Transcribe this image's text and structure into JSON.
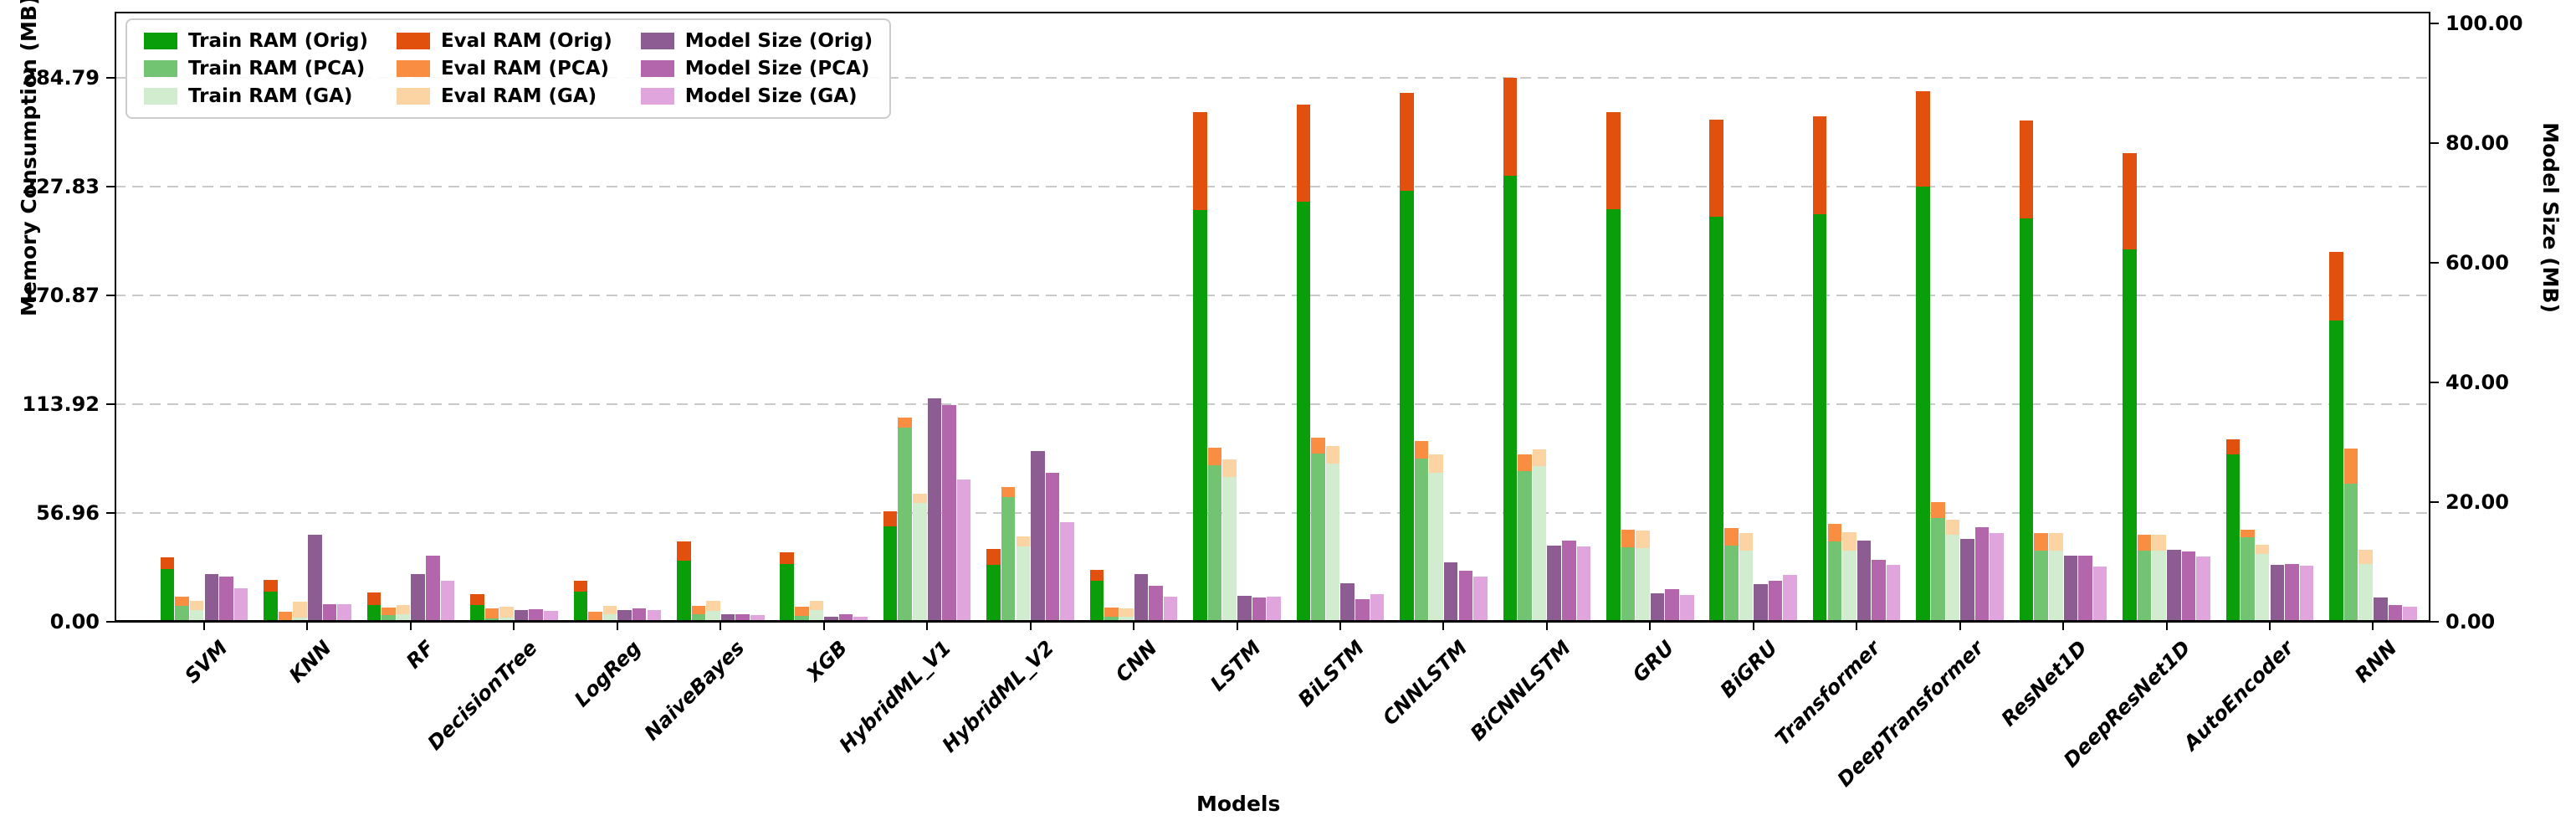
{
  "chart_data": {
    "type": "bar",
    "title": "",
    "xlabel": "Models",
    "ylabel_left": "Memory Consumption (MB)",
    "ylabel_right": "Model Size (MB)",
    "grid": "horizontal-dashed",
    "legend_position": "upper-left",
    "left_axis": {
      "max": 319.5,
      "ticks": [
        {
          "v": 0,
          "label": "0.00"
        },
        {
          "v": 56.96,
          "label": "56.96"
        },
        {
          "v": 113.92,
          "label": "113.92"
        },
        {
          "v": 170.87,
          "label": "170.87"
        },
        {
          "v": 227.83,
          "label": "227.83"
        },
        {
          "v": 284.79,
          "label": "284.79"
        }
      ]
    },
    "right_axis": {
      "max": 102,
      "ticks": [
        {
          "v": 0,
          "label": "0.00"
        },
        {
          "v": 20,
          "label": "20.00"
        },
        {
          "v": 40,
          "label": "40.00"
        },
        {
          "v": 60,
          "label": "60.00"
        },
        {
          "v": 80,
          "label": "80.00"
        },
        {
          "v": 100,
          "label": "100.00"
        }
      ]
    },
    "colors": {
      "train": {
        "orig": "#0a9f0a",
        "pca": "#72c472",
        "ga": "#d2ecd0"
      },
      "eval": {
        "orig": "#e2500d",
        "pca": "#f98e42",
        "ga": "#fcd4a4"
      },
      "size": {
        "orig": "#8c5c93",
        "pca": "#b366ab",
        "ga": "#e0a5dd"
      }
    },
    "legend": [
      {
        "label": "Train RAM (Orig)",
        "color": "#0a9f0a"
      },
      {
        "label": "Train RAM (PCA)",
        "color": "#72c472"
      },
      {
        "label": "Train RAM (GA)",
        "color": "#d2ecd0"
      },
      {
        "label": "Eval RAM (Orig)",
        "color": "#e2500d"
      },
      {
        "label": "Eval RAM (PCA)",
        "color": "#f98e42"
      },
      {
        "label": "Eval RAM (GA)",
        "color": "#fcd4a4"
      },
      {
        "label": "Model Size (Orig)",
        "color": "#8c5c93"
      },
      {
        "label": "Model Size (PCA)",
        "color": "#b366ab"
      },
      {
        "label": "Model Size (GA)",
        "color": "#e0a5dd"
      }
    ],
    "models": [
      {
        "name": "SVM",
        "train": {
          "orig": 27.8,
          "pca": 8.5,
          "ga": 6.3
        },
        "eval": {
          "orig": 5.8,
          "pca": 4.8,
          "ga": 4.5
        },
        "size": {
          "orig": 8.0,
          "pca": 7.5,
          "ga": 5.6
        }
      },
      {
        "name": "KNN",
        "train": {
          "orig": 15.7,
          "pca": 1.0,
          "ga": 2.2
        },
        "eval": {
          "orig": 6.3,
          "pca": 4.2,
          "ga": 8.5
        },
        "size": {
          "orig": 14.5,
          "pca": 3.0,
          "ga": 3.0
        }
      },
      {
        "name": "RF",
        "train": {
          "orig": 8.7,
          "pca": 3.4,
          "ga": 4.1
        },
        "eval": {
          "orig": 6.6,
          "pca": 3.9,
          "ga": 4.6
        },
        "size": {
          "orig": 8.0,
          "pca": 11.0,
          "ga": 6.8
        }
      },
      {
        "name": "DecisionTree",
        "train": {
          "orig": 8.7,
          "pca": 1.9,
          "ga": 2.0
        },
        "eval": {
          "orig": 5.6,
          "pca": 5.1,
          "ga": 5.7
        },
        "size": {
          "orig": 2.0,
          "pca": 2.1,
          "ga": 1.8
        }
      },
      {
        "name": "LogReg",
        "train": {
          "orig": 15.6,
          "pca": 0.5,
          "ga": 3.8
        },
        "eval": {
          "orig": 5.7,
          "pca": 4.7,
          "ga": 4.7
        },
        "size": {
          "orig": 2.0,
          "pca": 2.2,
          "ga": 2.0
        }
      },
      {
        "name": "NaiveBayes",
        "train": {
          "orig": 31.8,
          "pca": 4.1,
          "ga": 5.9
        },
        "eval": {
          "orig": 10.5,
          "pca": 4.1,
          "ga": 5.2
        },
        "size": {
          "orig": 1.2,
          "pca": 1.2,
          "ga": 1.1
        }
      },
      {
        "name": "XGB",
        "train": {
          "orig": 30.3,
          "pca": 2.9,
          "ga": 6.0
        },
        "eval": {
          "orig": 6.0,
          "pca": 4.8,
          "ga": 5.0
        },
        "size": {
          "orig": 0.9,
          "pca": 1.2,
          "ga": 0.9
        }
      },
      {
        "name": "HybridML_V1",
        "train": {
          "orig": 50.0,
          "pca": 101.6,
          "ga": 62.3
        },
        "eval": {
          "orig": 8.0,
          "pca": 5.2,
          "ga": 4.7
        },
        "size": {
          "orig": 37.4,
          "pca": 36.2,
          "ga": 23.8
        }
      },
      {
        "name": "HybridML_V2",
        "train": {
          "orig": 29.9,
          "pca": 65.3,
          "ga": 39.3
        },
        "eval": {
          "orig": 8.1,
          "pca": 5.1,
          "ga": 5.2
        },
        "size": {
          "orig": 28.6,
          "pca": 24.9,
          "ga": 16.7
        }
      },
      {
        "name": "CNN",
        "train": {
          "orig": 21.6,
          "pca": 2.6,
          "ga": 2.6
        },
        "eval": {
          "orig": 5.8,
          "pca": 4.7,
          "ga": 4.4
        },
        "size": {
          "orig": 8.0,
          "pca": 6.0,
          "ga": 4.2
        }
      },
      {
        "name": "LSTM",
        "train": {
          "orig": 215.6,
          "pca": 81.9,
          "ga": 75.8
        },
        "eval": {
          "orig": 51.3,
          "pca": 9.2,
          "ga": 9.2
        },
        "size": {
          "orig": 4.4,
          "pca": 4.1,
          "ga": 4.2
        }
      },
      {
        "name": "BiLSTM",
        "train": {
          "orig": 220.0,
          "pca": 88.2,
          "ga": 82.8
        },
        "eval": {
          "orig": 50.8,
          "pca": 8.3,
          "ga": 9.1
        },
        "size": {
          "orig": 6.5,
          "pca": 3.8,
          "ga": 4.6
        }
      },
      {
        "name": "CNNLSTM",
        "train": {
          "orig": 225.5,
          "pca": 85.3,
          "ga": 78.0
        },
        "eval": {
          "orig": 51.6,
          "pca": 9.5,
          "ga": 9.5
        },
        "size": {
          "orig": 10.0,
          "pca": 8.6,
          "ga": 7.5
        }
      },
      {
        "name": "BiCNNLSTM",
        "train": {
          "orig": 233.6,
          "pca": 79.0,
          "ga": 81.4
        },
        "eval": {
          "orig": 51.2,
          "pca": 8.8,
          "ga": 9.0
        },
        "size": {
          "orig": 12.8,
          "pca": 13.6,
          "ga": 12.6
        }
      },
      {
        "name": "GRU",
        "train": {
          "orig": 216.0,
          "pca": 38.9,
          "ga": 38.6
        },
        "eval": {
          "orig": 50.9,
          "pca": 9.2,
          "ga": 9.0
        },
        "size": {
          "orig": 4.7,
          "pca": 5.4,
          "ga": 4.5
        }
      },
      {
        "name": "BiGRU",
        "train": {
          "orig": 212.1,
          "pca": 40.0,
          "ga": 37.1
        },
        "eval": {
          "orig": 50.7,
          "pca": 9.1,
          "ga": 9.2
        },
        "size": {
          "orig": 6.3,
          "pca": 6.8,
          "ga": 7.8
        }
      },
      {
        "name": "Transformer",
        "train": {
          "orig": 213.4,
          "pca": 42.2,
          "ga": 37.4
        },
        "eval": {
          "orig": 51.3,
          "pca": 9.2,
          "ga": 9.5
        },
        "size": {
          "orig": 13.6,
          "pca": 10.4,
          "ga": 9.5
        }
      },
      {
        "name": "DeepTransformer",
        "train": {
          "orig": 227.7,
          "pca": 54.2,
          "ga": 45.4
        },
        "eval": {
          "orig": 50.1,
          "pca": 8.5,
          "ga": 8.2
        },
        "size": {
          "orig": 13.8,
          "pca": 15.8,
          "ga": 14.8
        }
      },
      {
        "name": "ResNet1D",
        "train": {
          "orig": 211.2,
          "pca": 37.4,
          "ga": 37.4
        },
        "eval": {
          "orig": 51.3,
          "pca": 8.9,
          "ga": 9.2
        },
        "size": {
          "orig": 11.1,
          "pca": 11.0,
          "ga": 9.2
        }
      },
      {
        "name": "DeepResNet1D",
        "train": {
          "orig": 195.1,
          "pca": 37.4,
          "ga": 37.4
        },
        "eval": {
          "orig": 50.2,
          "pca": 8.2,
          "ga": 8.1
        },
        "size": {
          "orig": 12.1,
          "pca": 11.8,
          "ga": 10.9
        }
      },
      {
        "name": "AutoEncoder",
        "train": {
          "orig": 87.5,
          "pca": 44.1,
          "ga": 35.6
        },
        "eval": {
          "orig": 8.0,
          "pca": 4.2,
          "ga": 4.8
        },
        "size": {
          "orig": 9.5,
          "pca": 9.7,
          "ga": 9.4
        }
      },
      {
        "name": "RNN",
        "train": {
          "orig": 157.9,
          "pca": 72.4,
          "ga": 30.2
        },
        "eval": {
          "orig": 35.8,
          "pca": 18.3,
          "ga": 7.6
        },
        "size": {
          "orig": 4.0,
          "pca": 2.8,
          "ga": 2.5
        }
      }
    ]
  }
}
